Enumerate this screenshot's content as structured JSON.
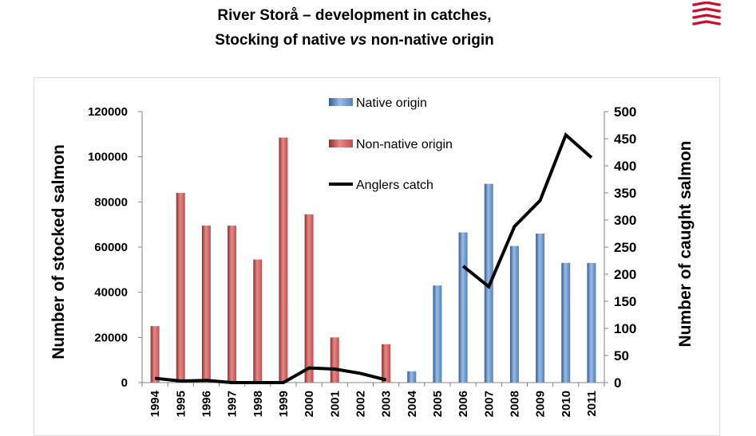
{
  "slide": {
    "title_line1": "River Storå – development in catches,",
    "title_line2_pre": "Stocking of native ",
    "title_line2_em": "vs",
    "title_line2_post": " non-native origin"
  },
  "logo": {
    "icon": "stacked-red-chevrons-logo",
    "color": "#c8102e"
  },
  "chart_data": {
    "type": "bar",
    "categories": [
      "1994",
      "1995",
      "1996",
      "1997",
      "1998",
      "1999",
      "2000",
      "2001",
      "2002",
      "2003",
      "2004",
      "2005",
      "2006",
      "2007",
      "2008",
      "2009",
      "2010",
      "2011"
    ],
    "series": [
      {
        "name": "Native origin",
        "type": "bar",
        "axis": "left",
        "color": "#4f81bd",
        "values": [
          null,
          null,
          null,
          null,
          null,
          null,
          null,
          null,
          null,
          null,
          5000,
          43000,
          66500,
          88000,
          60500,
          66000,
          53000,
          53000
        ]
      },
      {
        "name": "Non-native origin",
        "type": "bar",
        "axis": "left",
        "color": "#c0504d",
        "values": [
          25000,
          84000,
          69500,
          69500,
          54500,
          108500,
          74500,
          20000,
          null,
          17000,
          null,
          null,
          null,
          null,
          null,
          null,
          null,
          null
        ]
      },
      {
        "name": "Anglers catch",
        "type": "line",
        "axis": "right",
        "color": "#000000",
        "values": [
          8,
          3,
          4,
          0,
          0,
          0,
          27,
          25,
          17,
          5,
          null,
          null,
          215,
          177,
          288,
          336,
          457,
          415
        ]
      }
    ],
    "ylabel": "Number of stocked salmon",
    "y2label": "Number of caught salmon",
    "ylim": [
      0,
      120000
    ],
    "y2lim": [
      0,
      500
    ],
    "yticks": [
      "0",
      "20000",
      "40000",
      "60000",
      "80000",
      "100000",
      "120000"
    ],
    "y2ticks": [
      "0",
      "50",
      "100",
      "150",
      "200",
      "250",
      "300",
      "350",
      "400",
      "450",
      "500"
    ],
    "legend_position": "top-center",
    "grid": false
  }
}
